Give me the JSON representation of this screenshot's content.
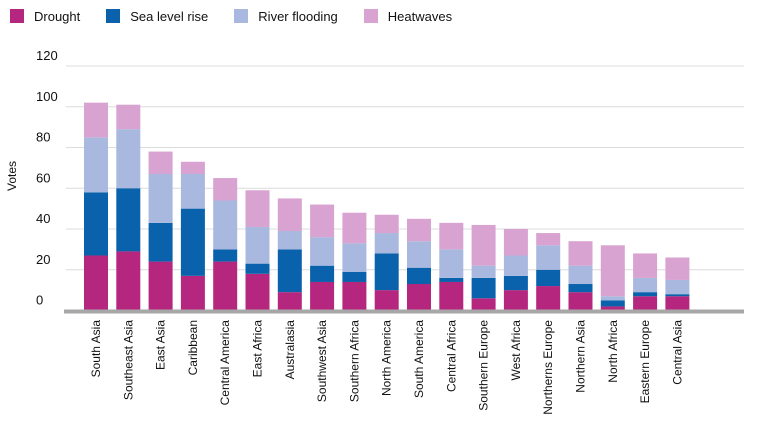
{
  "chart_data": {
    "type": "bar",
    "stacked": true,
    "title": "",
    "xlabel": "",
    "ylabel": "Votes",
    "ylim": [
      0,
      120
    ],
    "yticks": [
      0,
      20,
      40,
      60,
      80,
      100,
      120
    ],
    "grid": true,
    "legend_position": "top-left",
    "categories": [
      "South Asia",
      "Southeast Asia",
      "East Asia",
      "Caribbean",
      "Central America",
      "East Africa",
      "Australasia",
      "Southwest Asia",
      "Southern Africa",
      "North America",
      "South America",
      "Central Africa",
      "Southern Europe",
      "West Africa",
      "Northerns Europe",
      "Northern Asia",
      "North Africa",
      "Eastern Europe",
      "Central Asia"
    ],
    "series": [
      {
        "name": "Drought",
        "color": "#b5267f",
        "values": [
          27,
          29,
          24,
          17,
          24,
          18,
          9,
          14,
          14,
          10,
          13,
          14,
          6,
          10,
          12,
          9,
          2,
          7,
          7
        ]
      },
      {
        "name": "Sea level rise",
        "color": "#0a62ad",
        "values": [
          31,
          31,
          19,
          33,
          6,
          5,
          21,
          8,
          5,
          18,
          8,
          2,
          10,
          7,
          8,
          4,
          3,
          2,
          1
        ]
      },
      {
        "name": "River flooding",
        "color": "#a8b8de",
        "values": [
          27,
          29,
          24,
          17,
          24,
          18,
          9,
          14,
          14,
          10,
          13,
          14,
          6,
          10,
          12,
          9,
          2,
          7,
          7
        ]
      },
      {
        "name": "Heatwaves",
        "color": "#d8a2d1",
        "values": [
          17,
          12,
          11,
          6,
          11,
          18,
          16,
          16,
          15,
          9,
          11,
          13,
          20,
          13,
          6,
          12,
          25,
          12,
          11
        ]
      }
    ]
  }
}
